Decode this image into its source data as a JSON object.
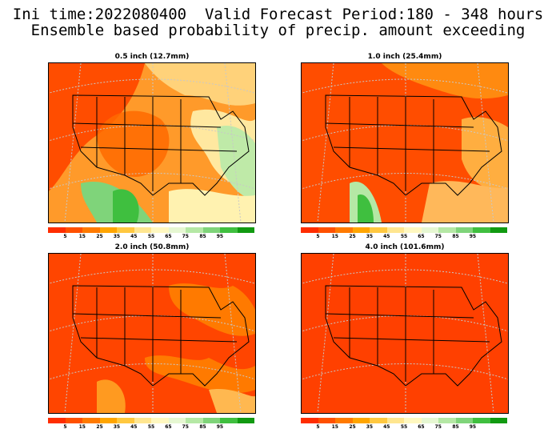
{
  "header": {
    "line1": "Ini time:2022080400  Valid Forecast Period:180 - 348 hours",
    "line2": "Ensemble based probability of precip. amount exceeding"
  },
  "panels": [
    {
      "title": "0.5 inch (12.7mm)",
      "dominant": "mixed"
    },
    {
      "title": "1.0 inch (25.4mm)",
      "dominant": "mostly-low"
    },
    {
      "title": "2.0 inch (50.8mm)",
      "dominant": "low"
    },
    {
      "title": "4.0 inch (101.6mm)",
      "dominant": "lowest"
    }
  ],
  "colorbar": {
    "ticks": [
      "5",
      "15",
      "25",
      "35",
      "45",
      "55",
      "65",
      "75",
      "85",
      "95"
    ],
    "colors": [
      "#ff2d00",
      "#ff5000",
      "#ff7a00",
      "#ffa500",
      "#ffc840",
      "#ffe690",
      "#fff8c0",
      "#e6f7d2",
      "#b5e8a5",
      "#7fd47a",
      "#3fbf3f",
      "#119a11"
    ]
  },
  "colors": {
    "land_low": "#ff4f00",
    "land_mid": "#ff9a00",
    "ocean_high": "#5bcf5b",
    "border": "#000000",
    "grid": "#c8c8c8"
  }
}
